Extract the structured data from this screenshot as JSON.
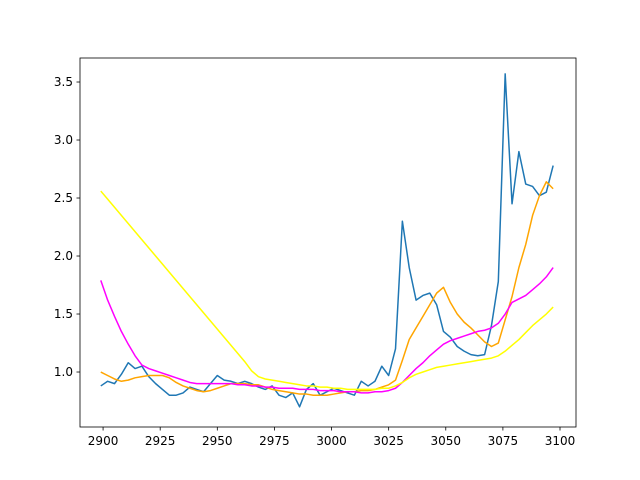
{
  "chart_data": {
    "type": "line",
    "x": [
      2899,
      2902,
      2905,
      2908,
      2911,
      2914,
      2917,
      2920,
      2923,
      2926,
      2929,
      2932,
      2935,
      2938,
      2941,
      2944,
      2947,
      2950,
      2953,
      2956,
      2959,
      2962,
      2965,
      2968,
      2971,
      2974,
      2977,
      2980,
      2983,
      2986,
      2989,
      2992,
      2995,
      2998,
      3001,
      3004,
      3007,
      3010,
      3013,
      3016,
      3019,
      3022,
      3025,
      3028,
      3031,
      3034,
      3037,
      3040,
      3043,
      3046,
      3049,
      3052,
      3055,
      3058,
      3061,
      3064,
      3067,
      3070,
      3073,
      3076,
      3079,
      3082,
      3085,
      3088,
      3091,
      3094,
      3097
    ],
    "series": [
      {
        "color": "#1f77b4",
        "values": [
          0.88,
          0.92,
          0.9,
          0.98,
          1.08,
          1.03,
          1.05,
          0.96,
          0.9,
          0.85,
          0.8,
          0.8,
          0.82,
          0.87,
          0.85,
          0.83,
          0.9,
          0.97,
          0.93,
          0.92,
          0.9,
          0.92,
          0.9,
          0.87,
          0.85,
          0.88,
          0.8,
          0.78,
          0.82,
          0.7,
          0.85,
          0.9,
          0.8,
          0.83,
          0.86,
          0.84,
          0.82,
          0.8,
          0.92,
          0.88,
          0.92,
          1.05,
          0.97,
          1.2,
          2.3,
          1.9,
          1.62,
          1.66,
          1.68,
          1.58,
          1.35,
          1.3,
          1.22,
          1.18,
          1.15,
          1.14,
          1.15,
          1.4,
          1.78,
          3.57,
          2.45,
          2.9,
          2.62,
          2.6,
          2.52,
          2.55,
          2.78
        ]
      },
      {
        "color": "#ffa500",
        "values": [
          1.0,
          0.97,
          0.94,
          0.92,
          0.93,
          0.95,
          0.96,
          0.97,
          0.97,
          0.97,
          0.95,
          0.91,
          0.88,
          0.86,
          0.84,
          0.83,
          0.84,
          0.86,
          0.88,
          0.9,
          0.9,
          0.9,
          0.89,
          0.89,
          0.87,
          0.85,
          0.84,
          0.83,
          0.82,
          0.81,
          0.81,
          0.8,
          0.8,
          0.8,
          0.81,
          0.82,
          0.83,
          0.83,
          0.84,
          0.84,
          0.85,
          0.87,
          0.89,
          0.93,
          1.1,
          1.28,
          1.38,
          1.48,
          1.58,
          1.68,
          1.73,
          1.6,
          1.5,
          1.43,
          1.38,
          1.32,
          1.26,
          1.22,
          1.25,
          1.45,
          1.65,
          1.9,
          2.1,
          2.35,
          2.52,
          2.64,
          2.58
        ]
      },
      {
        "color": "#ff00ff",
        "values": [
          1.79,
          1.62,
          1.48,
          1.35,
          1.24,
          1.14,
          1.06,
          1.03,
          1.01,
          0.99,
          0.97,
          0.95,
          0.93,
          0.91,
          0.9,
          0.9,
          0.9,
          0.9,
          0.9,
          0.9,
          0.89,
          0.89,
          0.88,
          0.88,
          0.87,
          0.87,
          0.86,
          0.86,
          0.86,
          0.85,
          0.85,
          0.85,
          0.84,
          0.84,
          0.84,
          0.83,
          0.83,
          0.83,
          0.82,
          0.82,
          0.83,
          0.83,
          0.84,
          0.86,
          0.91,
          0.97,
          1.03,
          1.08,
          1.14,
          1.19,
          1.24,
          1.27,
          1.29,
          1.31,
          1.33,
          1.35,
          1.36,
          1.38,
          1.42,
          1.5,
          1.6,
          1.63,
          1.66,
          1.71,
          1.76,
          1.82,
          1.9
        ]
      },
      {
        "color": "#ffff00",
        "values": [
          2.56,
          2.49,
          2.42,
          2.35,
          2.28,
          2.21,
          2.14,
          2.07,
          2.0,
          1.93,
          1.86,
          1.79,
          1.72,
          1.65,
          1.58,
          1.51,
          1.44,
          1.37,
          1.3,
          1.23,
          1.16,
          1.09,
          1.01,
          0.96,
          0.94,
          0.93,
          0.92,
          0.91,
          0.9,
          0.89,
          0.88,
          0.88,
          0.87,
          0.87,
          0.86,
          0.86,
          0.85,
          0.85,
          0.85,
          0.85,
          0.85,
          0.86,
          0.86,
          0.88,
          0.91,
          0.95,
          0.98,
          1.0,
          1.02,
          1.04,
          1.05,
          1.06,
          1.07,
          1.08,
          1.09,
          1.1,
          1.11,
          1.12,
          1.14,
          1.18,
          1.23,
          1.28,
          1.34,
          1.4,
          1.45,
          1.5,
          1.56
        ]
      }
    ],
    "xlim": [
      2889.9,
      3107
    ],
    "xticks": [
      2900,
      2925,
      2950,
      2975,
      3000,
      3025,
      3050,
      3075,
      3100
    ],
    "ylim": [
      0.526,
      3.707
    ],
    "yticks": [
      {
        "value": 1,
        "label": "1.0"
      },
      {
        "value": 1.5,
        "label": "1.5"
      },
      {
        "value": 2,
        "label": "2.0"
      },
      {
        "value": 2.5,
        "label": "2.5"
      },
      {
        "value": 3,
        "label": "3.0"
      },
      {
        "value": 3.5,
        "label": "3.5"
      }
    ],
    "grid": false
  }
}
